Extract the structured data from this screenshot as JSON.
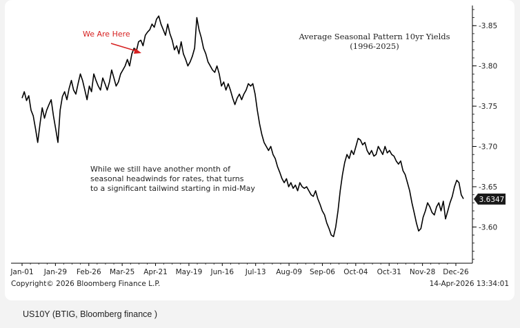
{
  "chart_data": {
    "type": "line",
    "title": "Average Seasonal Pattern 10yr Yields",
    "subtitle": "(1996-2025)",
    "annotation_arrow": "We Are Here",
    "annotation_text": [
      "While we still have another month of",
      "seasonal headwinds for rates, that turns",
      "to a significant tailwind starting in mid-May"
    ],
    "x_tick_labels": [
      "Jan-01",
      "Jan-29",
      "Feb-26",
      "Mar-25",
      "Apr-21",
      "May-19",
      "Jun-16",
      "Jul-13",
      "Aug-09",
      "Sep-06",
      "Oct-04",
      "Oct-31",
      "Nov-28",
      "Dec-26"
    ],
    "y_tick_labels": [
      "3.60",
      "3.65",
      "3.70",
      "3.75",
      "3.80",
      "3.85"
    ],
    "y_ticks": [
      3.6,
      3.65,
      3.7,
      3.75,
      3.8,
      3.85
    ],
    "ylim": [
      3.555,
      3.875
    ],
    "last_value_label": "3.6347",
    "last_value": 3.6347,
    "series": [
      {
        "color": "#000000",
        "values": [
          3.76,
          3.768,
          3.757,
          3.763,
          3.745,
          3.738,
          3.722,
          3.705,
          3.728,
          3.748,
          3.735,
          3.745,
          3.752,
          3.758,
          3.738,
          3.722,
          3.705,
          3.745,
          3.762,
          3.768,
          3.758,
          3.772,
          3.782,
          3.77,
          3.765,
          3.778,
          3.79,
          3.782,
          3.77,
          3.758,
          3.775,
          3.768,
          3.79,
          3.782,
          3.775,
          3.77,
          3.785,
          3.778,
          3.77,
          3.78,
          3.795,
          3.785,
          3.775,
          3.78,
          3.79,
          3.795,
          3.8,
          3.808,
          3.8,
          3.815,
          3.822,
          3.818,
          3.83,
          3.832,
          3.825,
          3.838,
          3.842,
          3.845,
          3.852,
          3.848,
          3.858,
          3.862,
          3.852,
          3.845,
          3.838,
          3.852,
          3.84,
          3.832,
          3.82,
          3.825,
          3.815,
          3.83,
          3.815,
          3.808,
          3.8,
          3.805,
          3.812,
          3.822,
          3.86,
          3.845,
          3.835,
          3.822,
          3.815,
          3.805,
          3.8,
          3.795,
          3.792,
          3.8,
          3.79,
          3.775,
          3.78,
          3.77,
          3.778,
          3.77,
          3.76,
          3.752,
          3.76,
          3.765,
          3.758,
          3.765,
          3.77,
          3.778,
          3.775,
          3.778,
          3.765,
          3.745,
          3.728,
          3.715,
          3.705,
          3.7,
          3.695,
          3.7,
          3.69,
          3.685,
          3.675,
          3.668,
          3.66,
          3.655,
          3.66,
          3.65,
          3.655,
          3.648,
          3.652,
          3.645,
          3.655,
          3.65,
          3.648,
          3.65,
          3.645,
          3.64,
          3.638,
          3.645,
          3.635,
          3.628,
          3.62,
          3.615,
          3.605,
          3.598,
          3.59,
          3.588,
          3.6,
          3.62,
          3.645,
          3.665,
          3.68,
          3.69,
          3.685,
          3.695,
          3.69,
          3.7,
          3.71,
          3.708,
          3.702,
          3.705,
          3.695,
          3.69,
          3.695,
          3.688,
          3.69,
          3.7,
          3.695,
          3.69,
          3.7,
          3.692,
          3.695,
          3.69,
          3.688,
          3.682,
          3.678,
          3.682,
          3.67,
          3.665,
          3.655,
          3.645,
          3.63,
          3.618,
          3.605,
          3.595,
          3.598,
          3.612,
          3.62,
          3.63,
          3.625,
          3.618,
          3.615,
          3.625,
          3.63,
          3.62,
          3.632,
          3.61,
          3.62,
          3.63,
          3.638,
          3.65,
          3.658,
          3.655,
          3.64,
          3.635
        ]
      }
    ],
    "grid": false,
    "legend": "none"
  },
  "copyright": "Copyright© 2026 Bloomberg Finance L.P.",
  "timestamp": "14-Apr-2026 13:34:01",
  "caption": "US10Y (BTIG, Bloomberg finance )",
  "colors": {
    "line": "#000000",
    "arrow": "#d62020",
    "background": "#ffffff",
    "page": "#f3f3f3",
    "value_tag": "#1a1a1a"
  }
}
